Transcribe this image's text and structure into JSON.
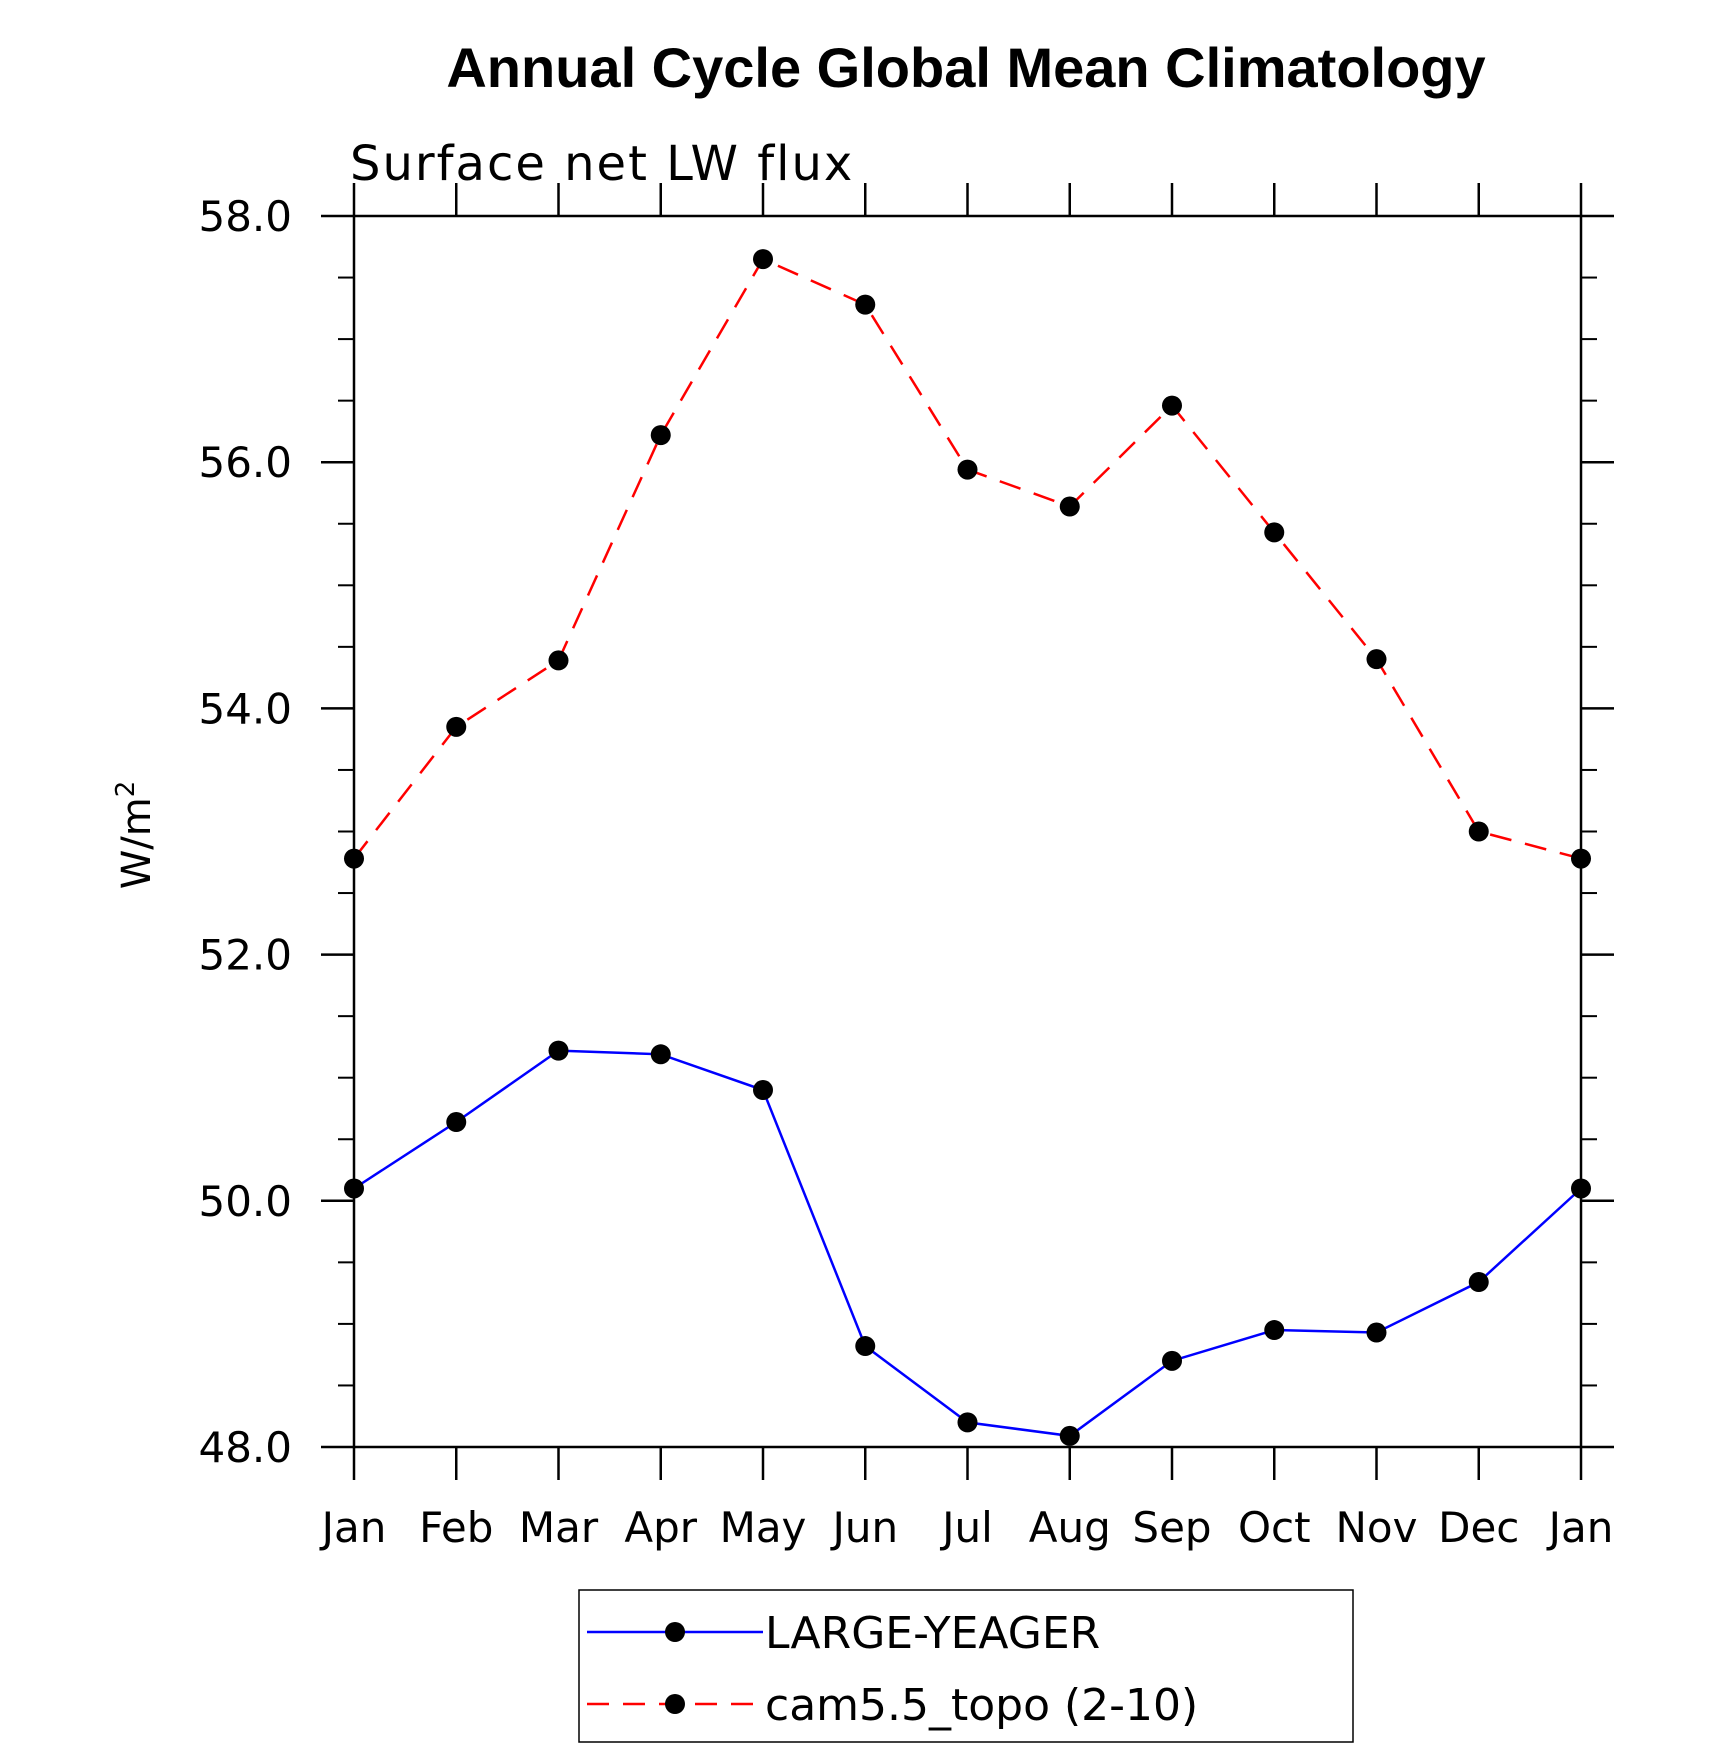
{
  "chart_data": {
    "type": "line",
    "title": "Annual Cycle Global Mean Climatology",
    "subtitle": "Surface net LW flux",
    "ylabel": "W/m",
    "ylabel_superscript": "2",
    "categories": [
      "Jan",
      "Feb",
      "Mar",
      "Apr",
      "May",
      "Jun",
      "Jul",
      "Aug",
      "Sep",
      "Oct",
      "Nov",
      "Dec",
      "Jan"
    ],
    "ylim": [
      48.0,
      58.0
    ],
    "y_ticks": [
      "48.0",
      "50.0",
      "52.0",
      "54.0",
      "56.0",
      "58.0"
    ],
    "y_minor_step": 0.5,
    "grid": false,
    "legend_position": "bottom",
    "series": [
      {
        "name": "LARGE-YEAGER",
        "color": "#0000ff",
        "dashed": false,
        "values": [
          50.1,
          50.64,
          51.22,
          51.19,
          50.9,
          48.82,
          48.2,
          48.09,
          48.7,
          48.95,
          48.93,
          49.34,
          50.1
        ]
      },
      {
        "name": "cam5.5_topo (2-10)",
        "color": "#ff0000",
        "dashed": true,
        "values": [
          52.78,
          53.85,
          54.39,
          56.22,
          57.65,
          57.28,
          55.94,
          55.64,
          56.46,
          55.43,
          54.4,
          53.0,
          52.78
        ]
      }
    ]
  }
}
